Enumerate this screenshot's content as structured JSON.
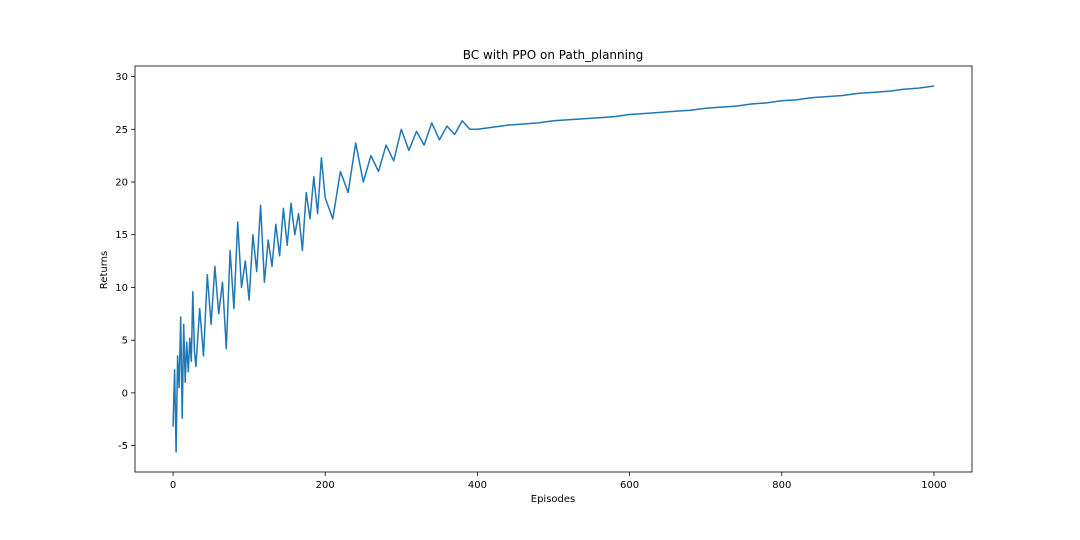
{
  "chart_data": {
    "type": "line",
    "title": "BC with PPO on Path_planning",
    "xlabel": "Episodes",
    "ylabel": "Returns",
    "xlim": [
      -50,
      1050
    ],
    "ylim": [
      -7.5,
      31
    ],
    "xticks": [
      0,
      200,
      400,
      600,
      800,
      1000
    ],
    "yticks": [
      -5,
      0,
      5,
      10,
      15,
      20,
      25,
      30
    ],
    "grid": false,
    "legend": "none",
    "series": [
      {
        "color": "#1f77b4",
        "x": [
          0,
          2,
          4,
          6,
          8,
          10,
          12,
          14,
          16,
          18,
          20,
          22,
          24,
          26,
          28,
          30,
          35,
          40,
          45,
          50,
          55,
          60,
          65,
          70,
          75,
          80,
          85,
          90,
          95,
          100,
          105,
          110,
          115,
          120,
          125,
          130,
          135,
          140,
          145,
          150,
          155,
          160,
          165,
          170,
          175,
          180,
          185,
          190,
          195,
          200,
          210,
          220,
          230,
          240,
          250,
          260,
          270,
          280,
          290,
          300,
          310,
          320,
          330,
          340,
          350,
          360,
          370,
          380,
          390,
          400,
          420,
          440,
          460,
          480,
          500,
          520,
          540,
          560,
          580,
          600,
          620,
          640,
          660,
          680,
          700,
          720,
          740,
          760,
          780,
          800,
          820,
          840,
          860,
          880,
          900,
          920,
          940,
          960,
          980,
          1000
        ],
        "y": [
          -3.2,
          2.2,
          -5.6,
          3.5,
          0.5,
          7.2,
          -2.4,
          6.5,
          1.0,
          4.8,
          2.0,
          5.2,
          3.0,
          9.6,
          4.0,
          2.5,
          8.0,
          3.5,
          11.2,
          6.5,
          12.0,
          7.5,
          10.5,
          4.2,
          13.5,
          8.0,
          16.2,
          10.0,
          12.5,
          8.8,
          15.0,
          11.5,
          17.8,
          10.5,
          14.5,
          12.0,
          16.0,
          13.0,
          17.5,
          14.0,
          18.0,
          15.0,
          17.0,
          13.5,
          19.0,
          16.5,
          20.5,
          17.0,
          22.3,
          18.5,
          16.5,
          21.0,
          19.0,
          23.7,
          20.0,
          22.5,
          21.0,
          23.5,
          22.0,
          25.0,
          23.0,
          24.8,
          23.5,
          25.6,
          24.0,
          25.3,
          24.5,
          25.8,
          25.0,
          25.0,
          25.2,
          25.4,
          25.5,
          25.6,
          25.8,
          25.9,
          26.0,
          26.1,
          26.2,
          26.4,
          26.5,
          26.6,
          26.7,
          26.8,
          27.0,
          27.1,
          27.2,
          27.4,
          27.5,
          27.7,
          27.8,
          28.0,
          28.1,
          28.2,
          28.4,
          28.5,
          28.6,
          28.8,
          28.9,
          29.1
        ]
      }
    ]
  }
}
